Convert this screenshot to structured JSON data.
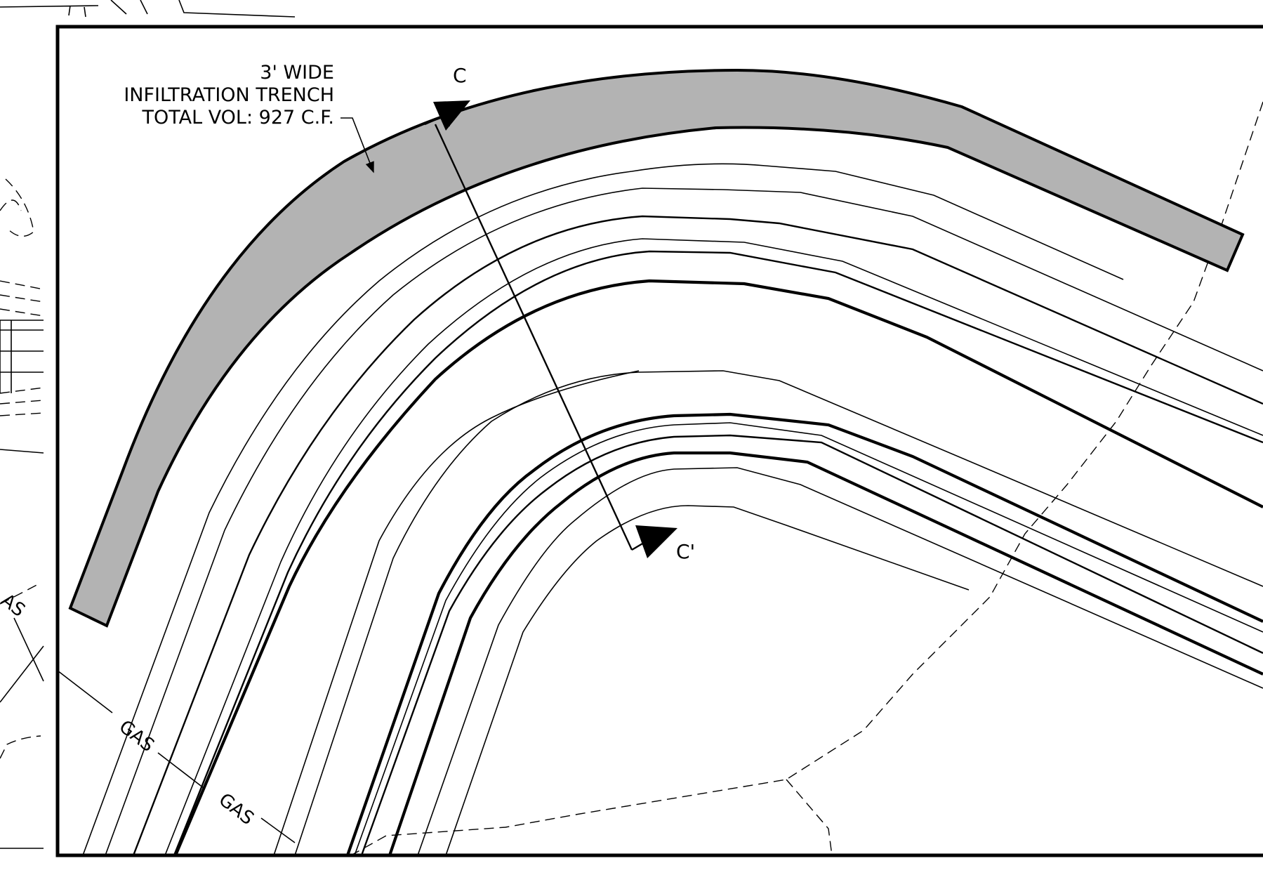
{
  "plan": {
    "trench_label": {
      "line1": "3' WIDE",
      "line2": "INFILTRATION TRENCH",
      "line3": "TOTAL VOL: 927 C.F."
    },
    "section_start": "C",
    "section_end": "C'",
    "gas_labels": [
      "AS",
      "GAS",
      "GAS"
    ]
  },
  "colors": {
    "trench_fill": "#b3b3b3",
    "linework": "#000000",
    "background": "#ffffff"
  }
}
